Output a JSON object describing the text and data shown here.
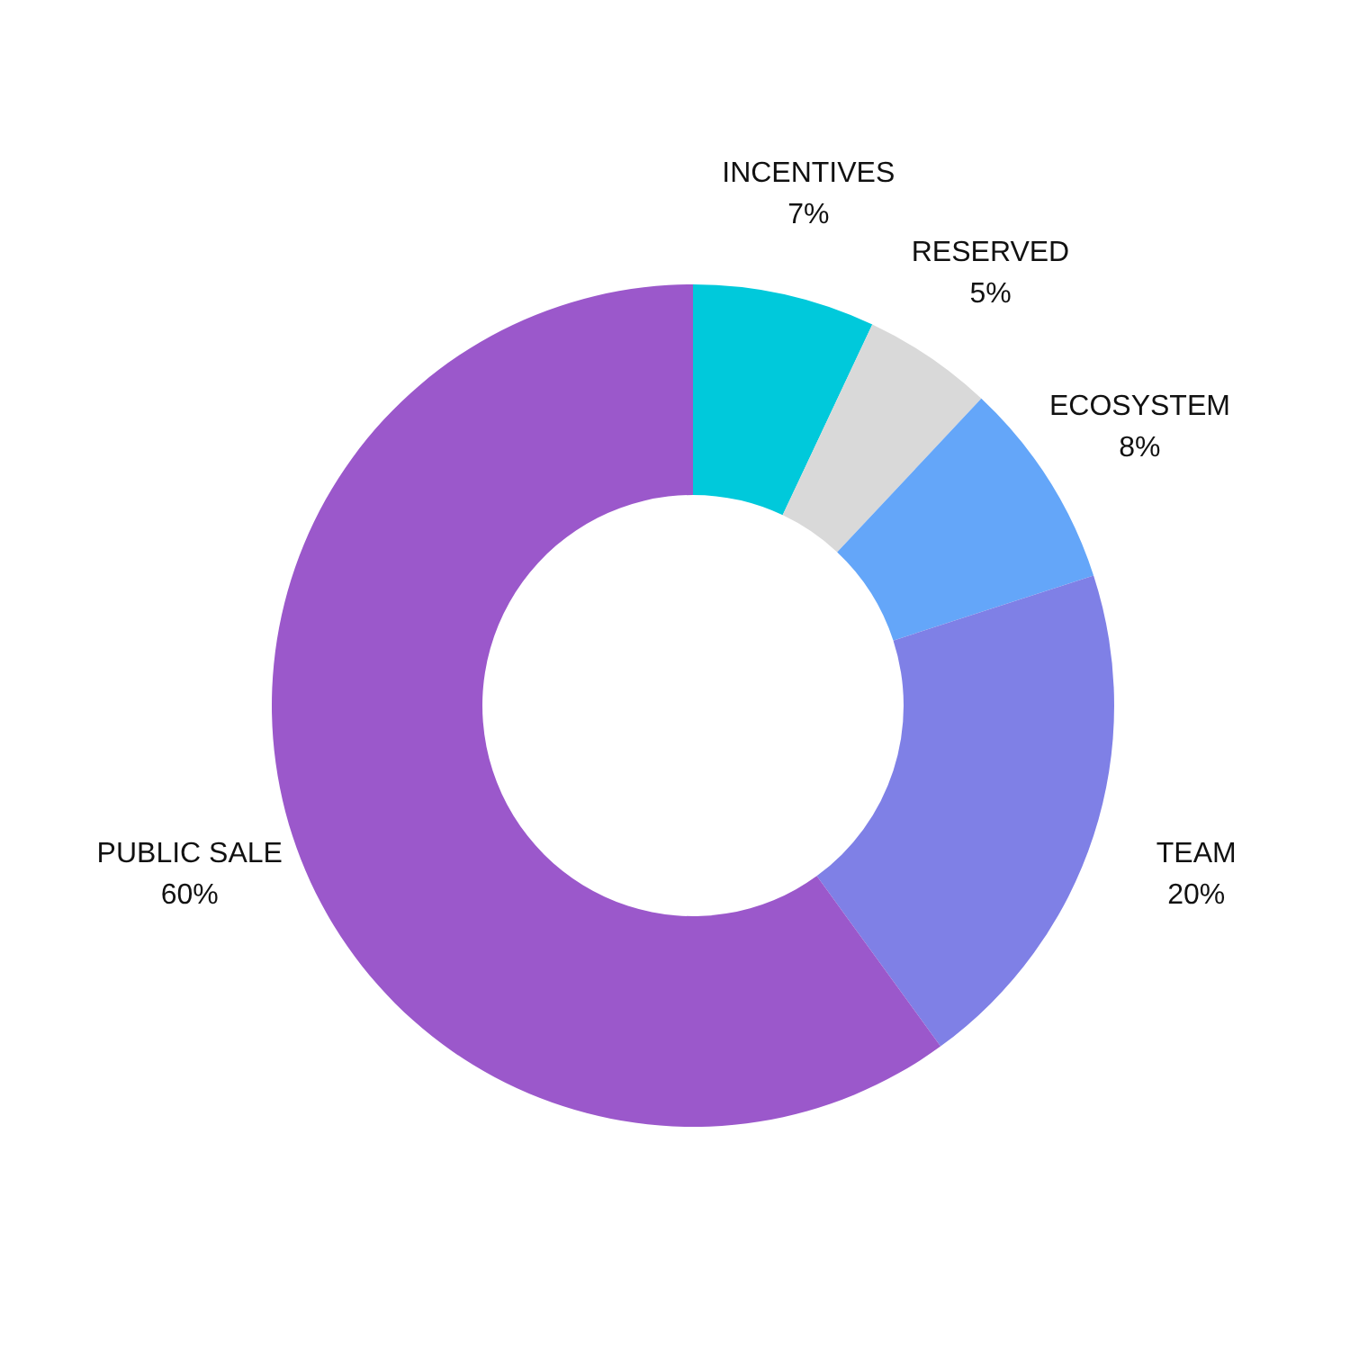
{
  "chart_data": {
    "type": "donut",
    "categories": [
      "INCENTIVES",
      "RESERVED",
      "ECOSYSTEM",
      "TEAM",
      "PUBLIC SALE"
    ],
    "values": [
      7,
      5,
      8,
      20,
      60
    ],
    "colors": [
      "#00c9db",
      "#d9d9d9",
      "#64a6f9",
      "#7f80e6",
      "#9b58cb"
    ],
    "value_labels": [
      "7%",
      "5%",
      "8%",
      "20%",
      "60%"
    ]
  }
}
